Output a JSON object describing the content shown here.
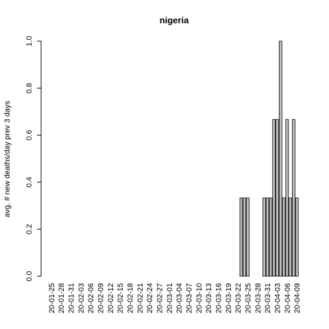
{
  "chart_data": {
    "type": "bar",
    "title": "nigeria",
    "y_label": "avg. # new deaths/day prev  3  days",
    "categories": [
      "20-01-25",
      null,
      null,
      "20-01-28",
      null,
      null,
      "20-01-31",
      null,
      null,
      "20-02-03",
      null,
      null,
      "20-02-06",
      null,
      null,
      "20-02-09",
      null,
      null,
      "20-02-12",
      null,
      null,
      "20-02-15",
      null,
      null,
      "20-02-18",
      null,
      null,
      "20-02-21",
      null,
      null,
      "20-02-24",
      null,
      null,
      "20-02-27",
      null,
      null,
      "20-03-01",
      null,
      null,
      "20-03-04",
      null,
      null,
      "20-03-07",
      null,
      null,
      "20-03-10",
      null,
      null,
      "20-03-13",
      null,
      null,
      "20-03-16",
      null,
      null,
      "20-03-19",
      null,
      null,
      "20-03-22",
      null,
      null,
      "20-03-25",
      null,
      null,
      "20-03-28",
      null,
      null,
      "20-03-31",
      null,
      null,
      "20-04-03",
      null,
      null,
      "20-04-06",
      null,
      null,
      "20-04-09"
    ],
    "values": [
      0,
      0,
      0,
      0,
      0,
      0,
      0,
      0,
      0,
      0,
      0,
      0,
      0,
      0,
      0,
      0,
      0,
      0,
      0,
      0,
      0,
      0,
      0,
      0,
      0,
      0,
      0,
      0,
      0,
      0,
      0,
      0,
      0,
      0,
      0,
      0,
      0,
      0,
      0,
      0,
      0,
      0,
      0,
      0,
      0,
      0,
      0,
      0,
      0,
      0,
      0,
      0,
      0,
      0,
      0,
      0,
      0,
      0,
      0.333,
      0.333,
      0.333,
      0,
      0,
      0,
      0,
      0.333,
      0.333,
      0.333,
      0.667,
      0.667,
      1,
      0.333,
      0.667,
      0.333,
      0.667,
      0.333
    ],
    "color": "#bebebe",
    "ylim": [
      0,
      1
    ],
    "yticks": [
      {
        "value": 0,
        "label": "0.0"
      },
      {
        "value": 0.2,
        "label": "0.2"
      },
      {
        "value": 0.4,
        "label": "0.4"
      },
      {
        "value": 0.6,
        "label": "0.6"
      },
      {
        "value": 0.8,
        "label": "0.8"
      },
      {
        "value": 1,
        "label": "1.0"
      }
    ]
  }
}
